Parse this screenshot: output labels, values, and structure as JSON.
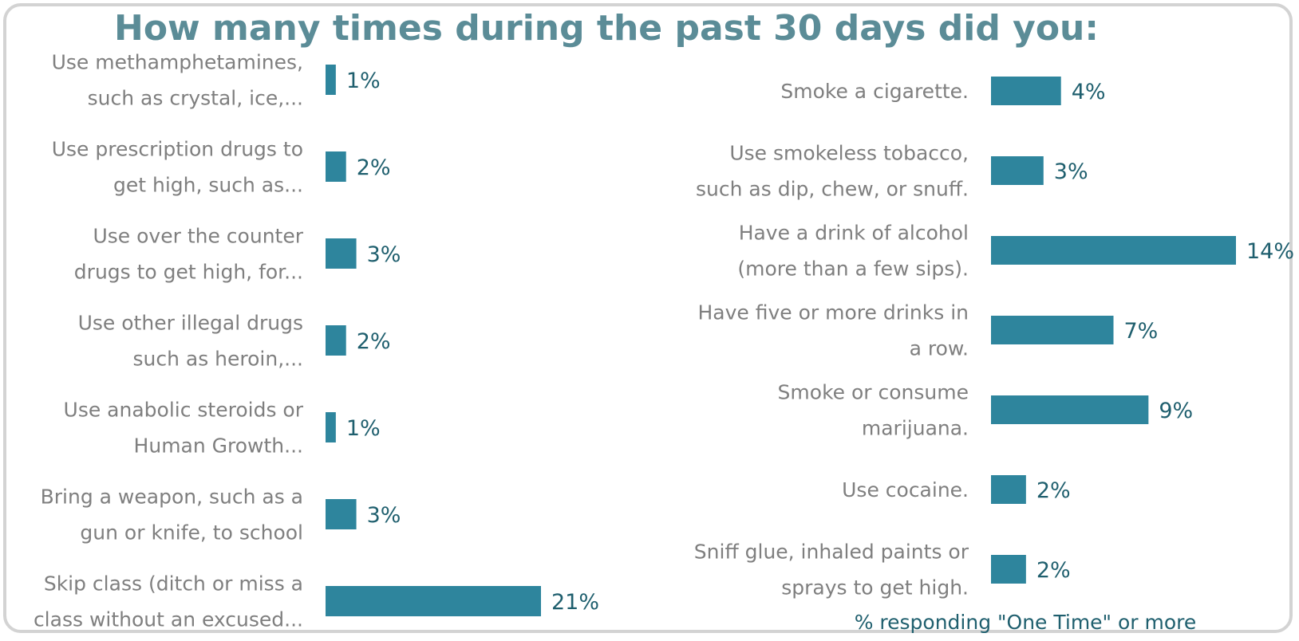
{
  "title": "How many times during the past 30 days did you:",
  "footnote": "% responding \"One Time\" or more",
  "colors": {
    "bar": "#2e859d",
    "value_text": "#1f5f6e",
    "label_text": "#7f7f7f",
    "title": "#5b8c97"
  },
  "chart_data": [
    {
      "type": "bar",
      "orientation": "horizontal",
      "unit": "%",
      "categories": [
        [
          "Use methamphetamines,",
          "such as crystal, ice,..."
        ],
        [
          "Use prescription drugs to",
          "get high, such as..."
        ],
        [
          "Use over the counter",
          "drugs to get high, for..."
        ],
        [
          "Use other illegal drugs",
          "such as heroin,..."
        ],
        [
          "Use anabolic steroids or",
          "Human Growth..."
        ],
        [
          "Bring a weapon, such as a",
          "gun or knife, to school"
        ],
        [
          "Skip class (ditch or miss a",
          "class without an excused..."
        ]
      ],
      "values": [
        1,
        2,
        3,
        2,
        1,
        3,
        21
      ],
      "value_labels": [
        "1%",
        "2%",
        "3%",
        "2%",
        "1%",
        "3%",
        "21%"
      ],
      "xlim": [
        0,
        21
      ]
    },
    {
      "type": "bar",
      "orientation": "horizontal",
      "unit": "%",
      "categories": [
        [
          "Smoke a cigarette."
        ],
        [
          "Use smokeless tobacco,",
          "such as dip, chew, or snuff."
        ],
        [
          "Have a drink of alcohol",
          "(more than a few sips)."
        ],
        [
          "Have five or more drinks in",
          "a row."
        ],
        [
          "Smoke or consume",
          "marijuana."
        ],
        [
          "Use cocaine."
        ],
        [
          "Sniff glue, inhaled paints or",
          "sprays to get high."
        ]
      ],
      "values": [
        4,
        3,
        14,
        7,
        9,
        2,
        2
      ],
      "value_labels": [
        "4%",
        "3%",
        "14%",
        "7%",
        "9%",
        "2%",
        "2%"
      ],
      "xlim": [
        0,
        14
      ]
    }
  ]
}
